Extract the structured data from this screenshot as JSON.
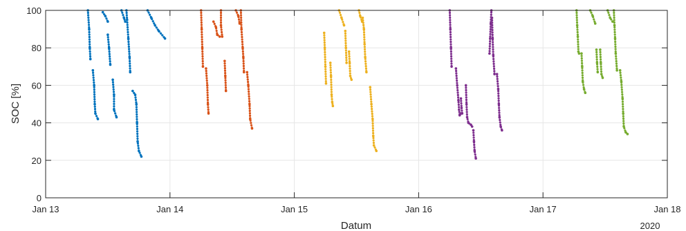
{
  "chart_data": {
    "type": "scatter",
    "xlabel": "Datum",
    "ylabel": "SOC [%]",
    "year_label": "2020",
    "xlim": [
      13,
      18
    ],
    "ylim": [
      0,
      100
    ],
    "grid": true,
    "x_ticks": [
      {
        "v": 13,
        "label": "Jan 13"
      },
      {
        "v": 14,
        "label": "Jan 14"
      },
      {
        "v": 15,
        "label": "Jan 15"
      },
      {
        "v": 16,
        "label": "Jan 16"
      },
      {
        "v": 17,
        "label": "Jan 17"
      },
      {
        "v": 18,
        "label": "Jan 18"
      }
    ],
    "y_ticks": [
      0,
      20,
      40,
      60,
      80,
      100
    ],
    "series": [
      {
        "color": "#0072BD",
        "segments": [
          [
            [
              13.34,
              100
            ],
            [
              13.35,
              90
            ],
            [
              13.355,
              80
            ],
            [
              13.36,
              74
            ]
          ],
          [
            [
              13.38,
              68
            ],
            [
              13.39,
              60
            ],
            [
              13.395,
              50
            ],
            [
              13.4,
              45
            ],
            [
              13.42,
              42
            ]
          ],
          [
            [
              13.46,
              99
            ],
            [
              13.48,
              97
            ],
            [
              13.5,
              94
            ]
          ],
          [
            [
              13.5,
              87
            ],
            [
              13.51,
              80
            ],
            [
              13.52,
              71
            ]
          ],
          [
            [
              13.54,
              63
            ],
            [
              13.55,
              55
            ],
            [
              13.55,
              47
            ],
            [
              13.57,
              43
            ]
          ],
          [
            [
              13.61,
              100
            ],
            [
              13.63,
              96
            ],
            [
              13.64,
              94
            ]
          ],
          [
            [
              13.65,
              100
            ],
            [
              13.655,
              95
            ],
            [
              13.665,
              85
            ],
            [
              13.675,
              75
            ],
            [
              13.68,
              67
            ]
          ],
          [
            [
              13.7,
              57
            ],
            [
              13.72,
              55
            ],
            [
              13.73,
              50
            ],
            [
              13.735,
              40
            ],
            [
              13.74,
              30
            ],
            [
              13.75,
              25
            ],
            [
              13.77,
              22
            ]
          ],
          [
            [
              13.82,
              100
            ],
            [
              13.85,
              96
            ],
            [
              13.88,
              92
            ],
            [
              13.91,
              89
            ],
            [
              13.96,
              85
            ]
          ]
        ]
      },
      {
        "color": "#D95319",
        "segments": [
          [
            [
              14.25,
              100
            ],
            [
              14.255,
              90
            ],
            [
              14.26,
              80
            ],
            [
              14.265,
              70
            ]
          ],
          [
            [
              14.29,
              69
            ],
            [
              14.3,
              60
            ],
            [
              14.305,
              50
            ],
            [
              14.31,
              45
            ]
          ],
          [
            [
              14.35,
              94
            ],
            [
              14.37,
              91
            ],
            [
              14.38,
              87
            ],
            [
              14.4,
              86
            ]
          ],
          [
            [
              14.41,
              100
            ],
            [
              14.41,
              92
            ],
            [
              14.42,
              86
            ]
          ],
          [
            [
              14.44,
              73
            ],
            [
              14.445,
              65
            ],
            [
              14.45,
              57
            ]
          ],
          [
            [
              14.53,
              100
            ],
            [
              14.55,
              97
            ],
            [
              14.56,
              93
            ]
          ],
          [
            [
              14.57,
              100
            ],
            [
              14.575,
              90
            ],
            [
              14.585,
              80
            ],
            [
              14.59,
              75
            ],
            [
              14.595,
              67
            ]
          ],
          [
            [
              14.62,
              67
            ],
            [
              14.63,
              60
            ],
            [
              14.64,
              50
            ],
            [
              14.645,
              42
            ],
            [
              14.66,
              37
            ]
          ]
        ]
      },
      {
        "color": "#EDB120",
        "segments": [
          [
            [
              15.24,
              88
            ],
            [
              15.245,
              80
            ],
            [
              15.25,
              70
            ],
            [
              15.255,
              61
            ]
          ],
          [
            [
              15.29,
              72
            ],
            [
              15.295,
              65
            ],
            [
              15.3,
              55
            ],
            [
              15.305,
              51
            ],
            [
              15.31,
              49
            ]
          ],
          [
            [
              15.36,
              100
            ],
            [
              15.38,
              96
            ],
            [
              15.4,
              92
            ]
          ],
          [
            [
              15.41,
              89
            ],
            [
              15.415,
              80
            ],
            [
              15.42,
              72
            ]
          ],
          [
            [
              15.44,
              78
            ],
            [
              15.445,
              72
            ],
            [
              15.45,
              65
            ],
            [
              15.46,
              63
            ]
          ],
          [
            [
              15.52,
              100
            ],
            [
              15.53,
              97
            ],
            [
              15.545,
              94
            ]
          ],
          [
            [
              15.55,
              96
            ],
            [
              15.56,
              90
            ],
            [
              15.565,
              82
            ],
            [
              15.57,
              75
            ],
            [
              15.58,
              67
            ]
          ],
          [
            [
              15.61,
              59
            ],
            [
              15.62,
              50
            ],
            [
              15.63,
              42
            ],
            [
              15.635,
              33
            ],
            [
              15.64,
              28
            ],
            [
              15.66,
              25
            ]
          ]
        ]
      },
      {
        "color": "#7E2F8E",
        "segments": [
          [
            [
              16.25,
              100
            ],
            [
              16.255,
              90
            ],
            [
              16.26,
              80
            ],
            [
              16.265,
              70
            ]
          ],
          [
            [
              16.3,
              69
            ],
            [
              16.31,
              60
            ],
            [
              16.32,
              52
            ],
            [
              16.325,
              47
            ],
            [
              16.33,
              44
            ],
            [
              16.34,
              45
            ]
          ],
          [
            [
              16.34,
              53
            ],
            [
              16.345,
              48
            ],
            [
              16.35,
              45
            ]
          ],
          [
            [
              16.38,
              60
            ],
            [
              16.385,
              50
            ],
            [
              16.39,
              43
            ],
            [
              16.4,
              40
            ],
            [
              16.42,
              39
            ],
            [
              16.43,
              38
            ]
          ],
          [
            [
              16.44,
              36
            ],
            [
              16.445,
              30
            ],
            [
              16.45,
              25
            ],
            [
              16.46,
              21
            ]
          ],
          [
            [
              16.57,
              77
            ],
            [
              16.575,
              85
            ],
            [
              16.58,
              93
            ],
            [
              16.585,
              100
            ]
          ],
          [
            [
              16.59,
              96
            ],
            [
              16.595,
              85
            ],
            [
              16.6,
              76
            ],
            [
              16.61,
              66
            ]
          ],
          [
            [
              16.63,
              66
            ],
            [
              16.64,
              58
            ],
            [
              16.645,
              50
            ],
            [
              16.65,
              43
            ],
            [
              16.66,
              38
            ],
            [
              16.67,
              36
            ]
          ]
        ]
      },
      {
        "color": "#77AC30",
        "segments": [
          [
            [
              17.27,
              100
            ],
            [
              17.275,
              92
            ],
            [
              17.28,
              86
            ],
            [
              17.285,
              78
            ],
            [
              17.29,
              77
            ]
          ],
          [
            [
              17.31,
              77
            ],
            [
              17.315,
              70
            ],
            [
              17.32,
              62
            ],
            [
              17.33,
              58
            ],
            [
              17.34,
              56
            ]
          ],
          [
            [
              17.38,
              100
            ],
            [
              17.4,
              97
            ],
            [
              17.42,
              93
            ]
          ],
          [
            [
              17.43,
              79
            ],
            [
              17.435,
              72
            ],
            [
              17.44,
              67
            ]
          ],
          [
            [
              17.46,
              79
            ],
            [
              17.465,
              72
            ],
            [
              17.47,
              66
            ],
            [
              17.48,
              64
            ]
          ],
          [
            [
              17.52,
              100
            ],
            [
              17.54,
              96
            ],
            [
              17.56,
              94
            ]
          ],
          [
            [
              17.57,
              100
            ],
            [
              17.575,
              92
            ],
            [
              17.58,
              85
            ],
            [
              17.585,
              77
            ],
            [
              17.595,
              68
            ]
          ],
          [
            [
              17.62,
              68
            ],
            [
              17.63,
              62
            ],
            [
              17.64,
              53
            ],
            [
              17.645,
              45
            ],
            [
              17.65,
              38
            ],
            [
              17.665,
              35
            ],
            [
              17.68,
              34
            ]
          ]
        ]
      }
    ]
  }
}
